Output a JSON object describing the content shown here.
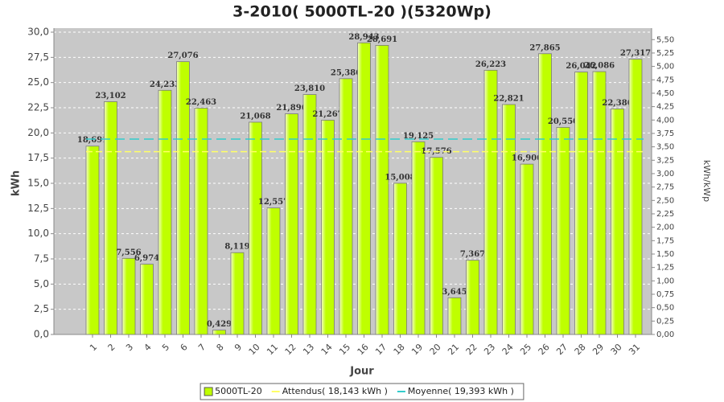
{
  "chart_data": {
    "type": "bar",
    "title": "3-2010( 5000TL-20 )(5320Wp)",
    "x_label": "Jour",
    "y_label": "kWh",
    "y2_label": "kWh/kWp",
    "categories": [
      "1",
      "2",
      "3",
      "4",
      "5",
      "6",
      "7",
      "8",
      "9",
      "10",
      "11",
      "12",
      "13",
      "14",
      "15",
      "16",
      "17",
      "18",
      "19",
      "20",
      "21",
      "22",
      "23",
      "24",
      "25",
      "26",
      "27",
      "28",
      "29",
      "30",
      "31"
    ],
    "series": [
      {
        "name": "5000TL-20",
        "color": "#bfff00",
        "values": [
          18.691,
          23.102,
          7.556,
          6.974,
          24.233,
          27.076,
          22.463,
          0.429,
          8.119,
          21.068,
          12.557,
          21.896,
          23.81,
          21.267,
          25.386,
          28.943,
          28.691,
          15.008,
          19.125,
          17.576,
          3.645,
          7.367,
          26.223,
          22.821,
          16.906,
          27.865,
          20.55,
          26.042,
          26.086,
          22.386,
          27.317
        ],
        "value_labels": [
          "18,691",
          "23,102",
          "7,556",
          "6,974",
          "24,233",
          "27,076",
          "22,463",
          "0,429",
          "8,119",
          "21,068",
          "12,557",
          "21,896",
          "23,810",
          "21,267",
          "25,386",
          "28,943",
          "28,691",
          "15,008",
          "19,125",
          "17,576",
          "3,645",
          "7,367",
          "26,223",
          "22,821",
          "16,906",
          "27,865",
          "20,550",
          "26,042",
          "26,086",
          "22,386",
          "27,317"
        ]
      }
    ],
    "lines": [
      {
        "name": "Attendus( 18,143 kWh )",
        "color": "#ffff66",
        "value": 18.143
      },
      {
        "name": "Moyenne( 19,393 kWh )",
        "color": "#33cccc",
        "value": 19.393
      }
    ],
    "ylim": [
      0,
      30.4
    ],
    "yticks": [
      {
        "value": 0,
        "label": "0,0"
      },
      {
        "value": 2.5,
        "label": "2,5"
      },
      {
        "value": 5,
        "label": "5,0"
      },
      {
        "value": 7.5,
        "label": "7,5"
      },
      {
        "value": 10,
        "label": "10,0"
      },
      {
        "value": 12.5,
        "label": "12,5"
      },
      {
        "value": 15,
        "label": "15,0"
      },
      {
        "value": 17.5,
        "label": "17,5"
      },
      {
        "value": 20,
        "label": "20,0"
      },
      {
        "value": 22.5,
        "label": "22,5"
      },
      {
        "value": 25,
        "label": "25,0"
      },
      {
        "value": 27.5,
        "label": "27,5"
      },
      {
        "value": 30,
        "label": "30,0"
      }
    ],
    "y2lim": [
      0,
      5.714
    ],
    "y2ticks": [
      {
        "value": 0,
        "label": "0,00"
      },
      {
        "value": 0.25,
        "label": "0,25"
      },
      {
        "value": 0.5,
        "label": "0,50"
      },
      {
        "value": 0.75,
        "label": "0,75"
      },
      {
        "value": 1,
        "label": "1,00"
      },
      {
        "value": 1.25,
        "label": "1,25"
      },
      {
        "value": 1.5,
        "label": "1,50"
      },
      {
        "value": 1.75,
        "label": "1,75"
      },
      {
        "value": 2,
        "label": "2,00"
      },
      {
        "value": 2.25,
        "label": "2,25"
      },
      {
        "value": 2.5,
        "label": "2,50"
      },
      {
        "value": 2.75,
        "label": "2,75"
      },
      {
        "value": 3,
        "label": "3,00"
      },
      {
        "value": 3.25,
        "label": "3,25"
      },
      {
        "value": 3.5,
        "label": "3,50"
      },
      {
        "value": 3.75,
        "label": "3,75"
      },
      {
        "value": 4,
        "label": "4,00"
      },
      {
        "value": 4.25,
        "label": "4,25"
      },
      {
        "value": 4.5,
        "label": "4,50"
      },
      {
        "value": 4.75,
        "label": "4,75"
      },
      {
        "value": 5,
        "label": "5,00"
      },
      {
        "value": 5.25,
        "label": "5,25"
      },
      {
        "value": 5.5,
        "label": "5,50"
      }
    ],
    "grid": true
  }
}
